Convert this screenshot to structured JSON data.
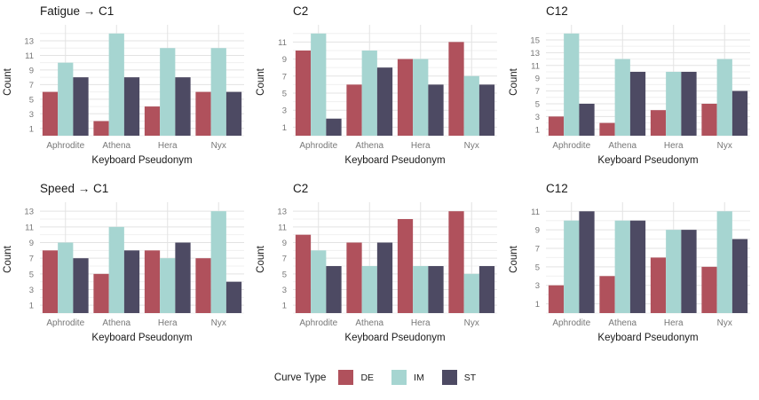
{
  "figure": {
    "x_axis_label": "Keyboard Pseudonym",
    "y_axis_label": "Count",
    "categories": [
      "Aphrodite",
      "Athena",
      "Hera",
      "Nyx"
    ]
  },
  "legend": {
    "title": "Curve Type",
    "entries": [
      {
        "label": "DE",
        "color": "#b0515c"
      },
      {
        "label": "IM",
        "color": "#a6d5d1"
      },
      {
        "label": "ST",
        "color": "#4d4a63"
      }
    ]
  },
  "colors": {
    "series": {
      "DE": "#b0515c",
      "IM": "#a6d5d1",
      "ST": "#4d4a63"
    },
    "grid_major": "#e3e3e3",
    "grid_minor": "#f0f0f0",
    "tick_text": "#777777",
    "axis_title_text": "#1a1a1a",
    "background": "#ffffff"
  },
  "chart_data": [
    {
      "type": "bar",
      "title": "Fatigue → C1",
      "xlabel": "Keyboard Pseudonym",
      "ylabel": "Count",
      "categories": [
        "Aphrodite",
        "Athena",
        "Hera",
        "Nyx"
      ],
      "series": [
        {
          "name": "DE",
          "values": [
            6,
            2,
            4,
            6
          ]
        },
        {
          "name": "IM",
          "values": [
            10,
            14,
            12,
            12
          ]
        },
        {
          "name": "ST",
          "values": [
            8,
            8,
            8,
            6
          ]
        }
      ],
      "y_ticks": [
        1,
        3,
        5,
        7,
        9,
        11,
        13
      ],
      "ylim": [
        0,
        14.7
      ],
      "grid": true,
      "legend_position": "bottom-shared"
    },
    {
      "type": "bar",
      "title": "C2",
      "xlabel": "Keyboard Pseudonym",
      "ylabel": "Count",
      "categories": [
        "Aphrodite",
        "Athena",
        "Hera",
        "Nyx"
      ],
      "series": [
        {
          "name": "DE",
          "values": [
            10,
            6,
            9,
            11
          ]
        },
        {
          "name": "IM",
          "values": [
            12,
            10,
            9,
            7
          ]
        },
        {
          "name": "ST",
          "values": [
            2,
            8,
            6,
            6
          ]
        }
      ],
      "y_ticks": [
        1,
        3,
        5,
        7,
        9,
        11
      ],
      "ylim": [
        0,
        12.6
      ],
      "grid": true,
      "legend_position": "bottom-shared"
    },
    {
      "type": "bar",
      "title": "C12",
      "xlabel": "Keyboard Pseudonym",
      "ylabel": "Count",
      "categories": [
        "Aphrodite",
        "Athena",
        "Hera",
        "Nyx"
      ],
      "series": [
        {
          "name": "DE",
          "values": [
            3,
            2,
            4,
            5
          ]
        },
        {
          "name": "IM",
          "values": [
            16,
            12,
            10,
            12
          ]
        },
        {
          "name": "ST",
          "values": [
            5,
            10,
            10,
            7
          ]
        }
      ],
      "y_ticks": [
        1,
        3,
        5,
        7,
        9,
        11,
        13,
        15
      ],
      "ylim": [
        0,
        16.8
      ],
      "grid": true,
      "legend_position": "bottom-shared"
    },
    {
      "type": "bar",
      "title": "Speed → C1",
      "xlabel": "Keyboard Pseudonym",
      "ylabel": "Count",
      "categories": [
        "Aphrodite",
        "Athena",
        "Hera",
        "Nyx"
      ],
      "series": [
        {
          "name": "DE",
          "values": [
            8,
            5,
            8,
            7
          ]
        },
        {
          "name": "IM",
          "values": [
            9,
            11,
            7,
            13
          ]
        },
        {
          "name": "ST",
          "values": [
            7,
            8,
            9,
            4
          ]
        }
      ],
      "y_ticks": [
        1,
        3,
        5,
        7,
        9,
        11,
        13
      ],
      "ylim": [
        0,
        13.7
      ],
      "grid": true,
      "legend_position": "bottom-shared"
    },
    {
      "type": "bar",
      "title": "C2",
      "xlabel": "Keyboard Pseudonym",
      "ylabel": "Count",
      "categories": [
        "Aphrodite",
        "Athena",
        "Hera",
        "Nyx"
      ],
      "series": [
        {
          "name": "DE",
          "values": [
            10,
            9,
            12,
            13
          ]
        },
        {
          "name": "IM",
          "values": [
            8,
            6,
            6,
            5
          ]
        },
        {
          "name": "ST",
          "values": [
            6,
            9,
            6,
            6
          ]
        }
      ],
      "y_ticks": [
        1,
        3,
        5,
        7,
        9,
        11,
        13
      ],
      "ylim": [
        0,
        13.7
      ],
      "grid": true,
      "legend_position": "bottom-shared"
    },
    {
      "type": "bar",
      "title": "C12",
      "xlabel": "Keyboard Pseudonym",
      "ylabel": "Count",
      "categories": [
        "Aphrodite",
        "Athena",
        "Hera",
        "Nyx"
      ],
      "series": [
        {
          "name": "DE",
          "values": [
            3,
            4,
            6,
            5
          ]
        },
        {
          "name": "IM",
          "values": [
            10,
            10,
            9,
            11
          ]
        },
        {
          "name": "ST",
          "values": [
            11,
            10,
            9,
            8
          ]
        }
      ],
      "y_ticks": [
        1,
        3,
        5,
        7,
        9,
        11
      ],
      "ylim": [
        0,
        11.6
      ],
      "grid": true,
      "legend_position": "bottom-shared"
    }
  ]
}
